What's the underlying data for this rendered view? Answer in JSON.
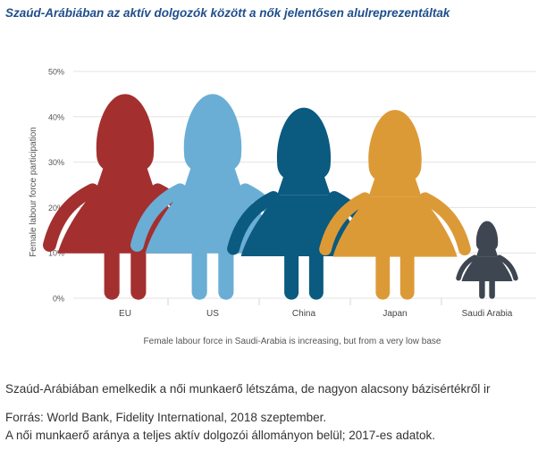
{
  "headline": "Szaúd-Arábiában az aktív dolgozók között a nők jelentősen alulreprezentáltak",
  "caption": "Szaúd-Arábiában emelkedik a női munkaerő létszáma, de nagyon alacsony bázisértékről ir",
  "source": "Forrás: World Bank, Fidelity International, 2018 szeptember.",
  "note": "A női munkaerő aránya a teljes aktív dolgozói állományon belül; 2017-es adatok.",
  "chart_data": {
    "type": "bar",
    "style": "pictograph-women-figures",
    "categories": [
      "EU",
      "US",
      "China",
      "Japan",
      "Saudi Arabia"
    ],
    "values": [
      45,
      45,
      42,
      41.5,
      17
    ],
    "colors": [
      "#a3302f",
      "#6aaed6",
      "#0b5a80",
      "#dc9a37",
      "#3d4651"
    ],
    "ylabel": "Female labour force participation",
    "yticks": [
      "0%",
      "10%",
      "20%",
      "30%",
      "40%",
      "50%"
    ],
    "ylim": [
      0,
      50
    ],
    "xlabel": "Female labour force in Saudi-Arabia is increasing, but from a very low base",
    "grid": true
  }
}
